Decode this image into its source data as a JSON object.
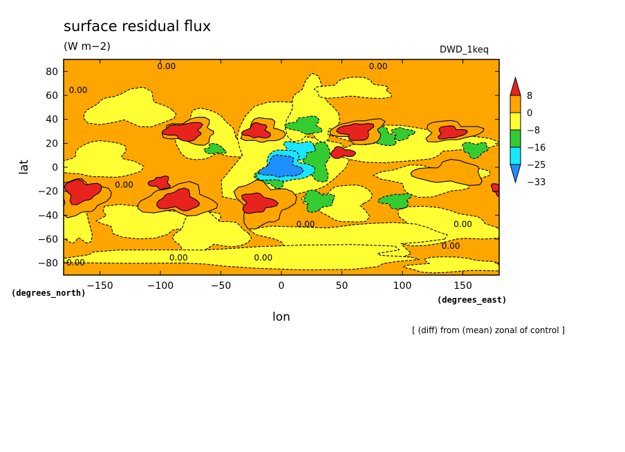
{
  "header": {
    "title": "surface residual flux",
    "units": "(W m−2)",
    "model": "DWD_1keq",
    "footnote": "[ (diff) from (mean) zonal of control ]"
  },
  "chart_data": {
    "type": "heatmap",
    "title": "surface residual flux",
    "xlabel": "lon",
    "ylabel": "lat",
    "x_units": "(degrees_east)",
    "y_units": "(degrees_north)",
    "xlim": [
      -180,
      180
    ],
    "ylim": [
      -90,
      90
    ],
    "x_ticks": [
      "−150",
      "−100",
      "−50",
      "0",
      "50",
      "100",
      "150"
    ],
    "x_tick_values": [
      -150,
      -100,
      -50,
      0,
      50,
      100,
      150
    ],
    "y_ticks": [
      "80",
      "60",
      "40",
      "20",
      "0",
      "−20",
      "−40",
      "−60",
      "−80"
    ],
    "y_tick_values": [
      80,
      60,
      40,
      20,
      0,
      -20,
      -40,
      -60,
      -80
    ],
    "contour_label": "0.00",
    "colorbar": {
      "levels": [
        "8",
        "0",
        "−8",
        "−16",
        "−25",
        "−33"
      ],
      "colors": [
        "#e8231e",
        "#ffa500",
        "#ffff33",
        "#33cc33",
        "#19e6ff",
        "#1e90ff"
      ],
      "extend": "both"
    },
    "background_color": "#ffa500",
    "regions": [
      {
        "value": -4,
        "lon": -150,
        "lat": 5,
        "rlon": 30,
        "rlat": 15
      },
      {
        "value": -4,
        "lon": -105,
        "lat": -45,
        "rlon": 50,
        "rlat": 12
      },
      {
        "value": -4,
        "lon": -60,
        "lat": -55,
        "rlon": 30,
        "rlat": 15
      },
      {
        "value": -4,
        "lon": -60,
        "lat": 25,
        "rlon": 25,
        "rlat": 20
      },
      {
        "value": -4,
        "lon": -125,
        "lat": 48,
        "rlon": 35,
        "rlat": 14
      },
      {
        "value": -4,
        "lon": 0,
        "lat": 10,
        "rlon": 45,
        "rlat": 40
      },
      {
        "value": -4,
        "lon": 25,
        "lat": 45,
        "rlon": 20,
        "rlat": 25
      },
      {
        "value": -4,
        "lon": 60,
        "lat": 65,
        "rlon": 30,
        "rlat": 8
      },
      {
        "value": -4,
        "lon": 100,
        "lat": 20,
        "rlon": 60,
        "rlat": 15
      },
      {
        "value": -4,
        "lon": 125,
        "lat": -10,
        "rlon": 40,
        "rlat": 12
      },
      {
        "value": -4,
        "lon": 130,
        "lat": -50,
        "rlon": 45,
        "rlat": 15
      },
      {
        "value": -4,
        "lon": 60,
        "lat": -60,
        "rlon": 70,
        "rlat": 14
      },
      {
        "value": -4,
        "lon": -20,
        "lat": -75,
        "rlon": 140,
        "rlat": 9
      },
      {
        "value": -4,
        "lon": 145,
        "lat": -82,
        "rlon": 40,
        "rlat": 6
      },
      {
        "value": -4,
        "lon": -170,
        "lat": -45,
        "rlon": 12,
        "rlat": 20
      },
      {
        "value": -4,
        "lon": 50,
        "lat": -30,
        "rlon": 25,
        "rlat": 15
      },
      {
        "value": -12,
        "lon": 20,
        "lat": 35,
        "rlon": 13,
        "rlat": 7
      },
      {
        "value": -12,
        "lon": 30,
        "lat": 5,
        "rlon": 10,
        "rlat": 16
      },
      {
        "value": -12,
        "lon": 30,
        "lat": -28,
        "rlon": 12,
        "rlat": 8
      },
      {
        "value": -12,
        "lon": -8,
        "lat": -8,
        "rlon": 12,
        "rlat": 8
      },
      {
        "value": -12,
        "lon": 80,
        "lat": 25,
        "rlon": 15,
        "rlat": 7
      },
      {
        "value": -12,
        "lon": 100,
        "lat": 28,
        "rlon": 8,
        "rlat": 5
      },
      {
        "value": -12,
        "lon": 95,
        "lat": -28,
        "rlon": 12,
        "rlat": 6
      },
      {
        "value": -12,
        "lon": 160,
        "lat": 15,
        "rlon": 10,
        "rlat": 6
      },
      {
        "value": -12,
        "lon": -55,
        "lat": 15,
        "rlon": 8,
        "rlat": 4
      },
      {
        "value": -20,
        "lon": 15,
        "lat": 15,
        "rlon": 12,
        "rlat": 7
      },
      {
        "value": -20,
        "lon": 3,
        "lat": 0,
        "rlon": 20,
        "rlat": 13
      },
      {
        "value": -29,
        "lon": 0,
        "lat": 0,
        "rlon": 15,
        "rlat": 9
      },
      {
        "value": 4,
        "lon": -85,
        "lat": -28,
        "rlon": 30,
        "rlat": 12
      },
      {
        "value": 4,
        "lon": -15,
        "lat": -30,
        "rlon": 22,
        "rlat": 18
      },
      {
        "value": 4,
        "lon": -165,
        "lat": -25,
        "rlon": 20,
        "rlat": 14
      },
      {
        "value": 4,
        "lon": -75,
        "lat": 30,
        "rlon": 20,
        "rlat": 10
      },
      {
        "value": 4,
        "lon": -15,
        "lat": 30,
        "rlon": 15,
        "rlat": 10
      },
      {
        "value": 4,
        "lon": 65,
        "lat": 30,
        "rlon": 20,
        "rlat": 10
      },
      {
        "value": 4,
        "lon": 140,
        "lat": 30,
        "rlon": 22,
        "rlat": 8
      },
      {
        "value": 4,
        "lon": 140,
        "lat": -5,
        "rlon": 28,
        "rlat": 9
      },
      {
        "value": 12,
        "lon": -165,
        "lat": -20,
        "rlon": 14,
        "rlat": 9
      },
      {
        "value": 12,
        "lon": -80,
        "lat": 30,
        "rlon": 15,
        "rlat": 7
      },
      {
        "value": 12,
        "lon": -20,
        "lat": 30,
        "rlon": 10,
        "rlat": 6
      },
      {
        "value": 12,
        "lon": 62,
        "lat": 30,
        "rlon": 13,
        "rlat": 7
      },
      {
        "value": 12,
        "lon": 140,
        "lat": 29,
        "rlon": 11,
        "rlat": 5
      },
      {
        "value": 12,
        "lon": -85,
        "lat": -28,
        "rlon": 16,
        "rlat": 8
      },
      {
        "value": 12,
        "lon": -20,
        "lat": -30,
        "rlon": 13,
        "rlat": 8
      },
      {
        "value": 12,
        "lon": -100,
        "lat": -13,
        "rlon": 8,
        "rlat": 5
      },
      {
        "value": 12,
        "lon": 50,
        "lat": 12,
        "rlon": 10,
        "rlat": 4
      },
      {
        "value": 12,
        "lon": 180,
        "lat": -18,
        "rlon": 6,
        "rlat": 5
      }
    ],
    "contour_label_positions": [
      {
        "lon": -95,
        "lat": 82
      },
      {
        "lon": 80,
        "lat": 82
      },
      {
        "lon": -168,
        "lat": 62
      },
      {
        "lon": -130,
        "lat": -17
      },
      {
        "lon": -170,
        "lat": -82
      },
      {
        "lon": -85,
        "lat": -78
      },
      {
        "lon": -15,
        "lat": -78
      },
      {
        "lon": 20,
        "lat": -50
      },
      {
        "lon": 140,
        "lat": -68
      },
      {
        "lon": 150,
        "lat": -50
      }
    ]
  }
}
